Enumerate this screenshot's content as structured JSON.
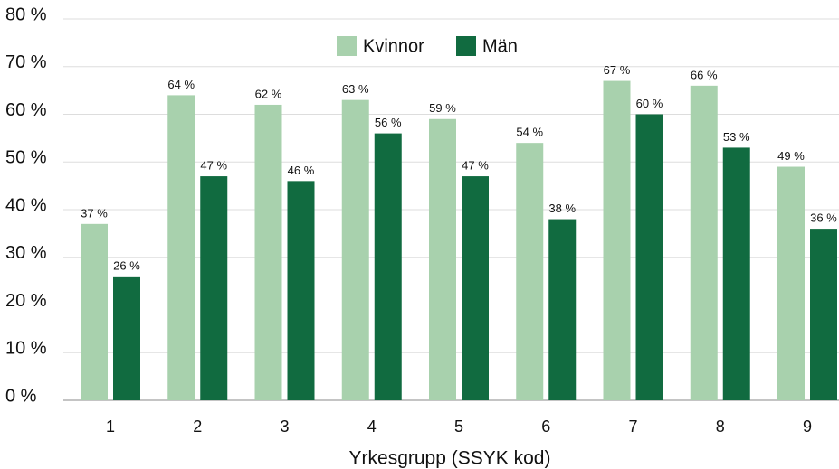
{
  "chart_data": {
    "type": "bar",
    "x_label": "Yrkesgrupp (SSYK kod)",
    "categories": [
      "1",
      "2",
      "3",
      "4",
      "5",
      "6",
      "7",
      "8",
      "9"
    ],
    "series": [
      {
        "name": "Kvinnor",
        "color": "#a8d1ad",
        "values": [
          37,
          64,
          62,
          63,
          59,
          54,
          67,
          66,
          49
        ],
        "value_labels": [
          "37 %",
          "64 %",
          "62 %",
          "63 %",
          "59 %",
          "54 %",
          "67 %",
          "66 %",
          "49 %"
        ]
      },
      {
        "name": "Män",
        "color": "#116b40",
        "values": [
          26,
          47,
          46,
          56,
          47,
          38,
          60,
          53,
          36
        ],
        "value_labels": [
          "26 %",
          "47 %",
          "46 %",
          "56 %",
          "47 %",
          "38 %",
          "60 %",
          "53 %",
          "36 %"
        ]
      }
    ],
    "ylim": [
      0,
      80
    ],
    "yticks": [
      {
        "value": 0,
        "label": "0 %"
      },
      {
        "value": 10,
        "label": "10 %"
      },
      {
        "value": 20,
        "label": "20 %"
      },
      {
        "value": 30,
        "label": "30 %"
      },
      {
        "value": 40,
        "label": "40 %"
      },
      {
        "value": 50,
        "label": "50 %"
      },
      {
        "value": 60,
        "label": "60 %"
      },
      {
        "value": 70,
        "label": "70 %"
      },
      {
        "value": 80,
        "label": "80 %"
      }
    ],
    "grid": true,
    "legend": "top"
  }
}
